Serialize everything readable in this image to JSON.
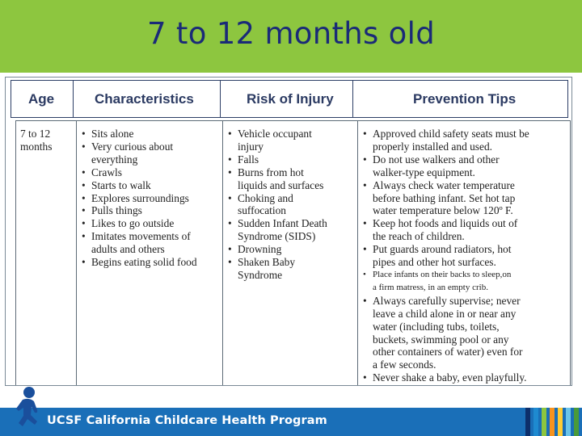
{
  "slide": {
    "title": "7 to 12 months old"
  },
  "table": {
    "headers": {
      "age": "Age",
      "characteristics": "Characteristics",
      "risk": "Risk of Injury",
      "prevention": "Prevention Tips"
    },
    "age": [
      "7 to 12",
      "months"
    ],
    "characteristics": [
      "Sits alone",
      "Very curious about",
      "everything",
      "Crawls",
      "Starts to walk",
      "Explores surroundings",
      "Pulls things",
      "Likes to go outside",
      "Imitates movements of",
      "adults and others",
      "Begins eating solid food"
    ],
    "risks": [
      "Vehicle occupant",
      "injury",
      "Falls",
      "Burns from hot",
      "liquids and surfaces",
      "Choking and",
      "suffocation",
      "Sudden Infant Death",
      "Syndrome (SIDS)",
      "Drowning",
      "Shaken Baby",
      "Syndrome"
    ],
    "tips": [
      "Approved child safety seats must be",
      "properly installed and used.",
      "Do not use walkers and other",
      "walker-type equipment.",
      "Always check water temperature",
      "before bathing infant. Set hot tap",
      "water temperature below 120º F.",
      "Keep hot foods and liquids out of",
      "the reach of children.",
      "Put guards around radiators, hot",
      "pipes and other hot surfaces.",
      "Place infants on their backs to sleep,on",
      "a firm matress, in an empty crib.",
      "Always carefully supervise; never",
      "leave a child alone in or near any",
      "water (including tubs, toilets,",
      "buckets, swimming pool or any",
      "other containers of water) even for",
      "a few seconds.",
      "Never shake a baby, even playfully."
    ]
  },
  "footer": {
    "program": "UCSF California Childcare Health Program",
    "logo_icon": "running-child-icon"
  },
  "colors": {
    "title_band": "#8dc63f",
    "title_text": "#1a2a78",
    "footer_band": "#1a6fb8",
    "header_text": "#2b3a62"
  }
}
